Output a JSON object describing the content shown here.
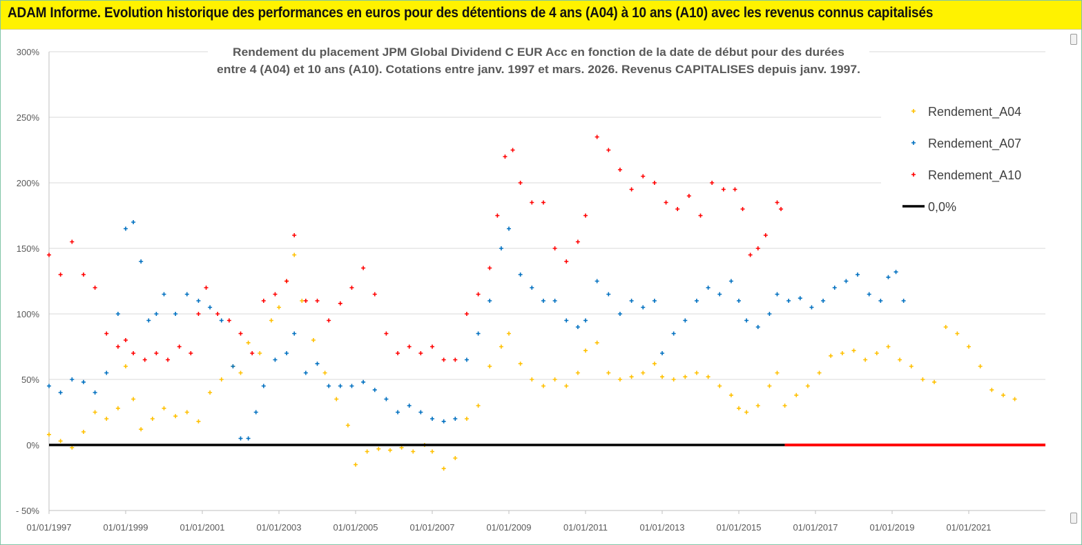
{
  "header": {
    "banner_text": "ADAM Informe. Evolution historique des performances en euros pour des détentions de 4 ans (A04) à 10 ans (A10) avec les revenus connus capitalisés"
  },
  "colors": {
    "banner_bg": "#fff200",
    "a04": "#ffc000",
    "a07": "#0070c0",
    "a10": "#ff0000",
    "zero_line": "#000000"
  },
  "chart_data": {
    "type": "scatter",
    "title_lines": [
      "Rendement du placement JPM Global Dividend C EUR Acc en fonction de la date de début pour des durées",
      "entre 4 (A04) et 10 ans (A10). Cotations entre janv. 1997 et mars. 2026. Revenus CAPITALISES depuis janv. 1997."
    ],
    "x_range": [
      1997.0,
      2023.0
    ],
    "y_range": [
      -50,
      300
    ],
    "y_ticks": [
      -50,
      0,
      50,
      100,
      150,
      200,
      250,
      300
    ],
    "y_tick_labels": [
      "- 50%",
      "0%",
      "50%",
      "100%",
      "150%",
      "200%",
      "250%",
      "300%"
    ],
    "x_ticks": [
      1997,
      1999,
      2001,
      2003,
      2005,
      2007,
      2009,
      2011,
      2013,
      2015,
      2017,
      2019,
      2021
    ],
    "x_tick_labels": [
      "01/01/1997",
      "01/01/1999",
      "01/01/2001",
      "01/01/2003",
      "01/01/2005",
      "01/01/2007",
      "01/01/2009",
      "01/01/2011",
      "01/01/2013",
      "01/01/2015",
      "01/01/2017",
      "01/01/2019",
      "01/01/2021"
    ],
    "gridlines_y": true,
    "legend_position": "top-right",
    "series": [
      {
        "name": "Rendement_A04",
        "marker": "+",
        "color": "#ffc000",
        "points": [
          [
            1997.0,
            8
          ],
          [
            1997.3,
            3
          ],
          [
            1997.6,
            -2
          ],
          [
            1997.9,
            10
          ],
          [
            1998.2,
            25
          ],
          [
            1998.5,
            20
          ],
          [
            1998.8,
            28
          ],
          [
            1999.0,
            60
          ],
          [
            1999.2,
            35
          ],
          [
            1999.4,
            12
          ],
          [
            1999.7,
            20
          ],
          [
            2000.0,
            28
          ],
          [
            2000.3,
            22
          ],
          [
            2000.6,
            25
          ],
          [
            2000.9,
            18
          ],
          [
            2001.2,
            40
          ],
          [
            2001.5,
            50
          ],
          [
            2001.8,
            60
          ],
          [
            2002.0,
            55
          ],
          [
            2002.2,
            78
          ],
          [
            2002.5,
            70
          ],
          [
            2002.8,
            95
          ],
          [
            2003.0,
            105
          ],
          [
            2003.2,
            125
          ],
          [
            2003.4,
            145
          ],
          [
            2003.6,
            110
          ],
          [
            2003.9,
            80
          ],
          [
            2004.2,
            55
          ],
          [
            2004.5,
            35
          ],
          [
            2004.8,
            15
          ],
          [
            2005.0,
            -15
          ],
          [
            2005.3,
            -5
          ],
          [
            2005.6,
            -3
          ],
          [
            2005.9,
            -4
          ],
          [
            2006.2,
            -2
          ],
          [
            2006.5,
            -5
          ],
          [
            2006.8,
            0
          ],
          [
            2007.0,
            -5
          ],
          [
            2007.3,
            -18
          ],
          [
            2007.6,
            -10
          ],
          [
            2007.9,
            20
          ],
          [
            2008.2,
            30
          ],
          [
            2008.5,
            60
          ],
          [
            2008.8,
            75
          ],
          [
            2009.0,
            85
          ],
          [
            2009.3,
            62
          ],
          [
            2009.6,
            50
          ],
          [
            2009.9,
            45
          ],
          [
            2010.2,
            50
          ],
          [
            2010.5,
            45
          ],
          [
            2010.8,
            55
          ],
          [
            2011.0,
            72
          ],
          [
            2011.3,
            78
          ],
          [
            2011.6,
            55
          ],
          [
            2011.9,
            50
          ],
          [
            2012.2,
            52
          ],
          [
            2012.5,
            55
          ],
          [
            2012.8,
            62
          ],
          [
            2013.0,
            52
          ],
          [
            2013.3,
            50
          ],
          [
            2013.6,
            52
          ],
          [
            2013.9,
            55
          ],
          [
            2014.2,
            52
          ],
          [
            2014.5,
            45
          ],
          [
            2014.8,
            38
          ],
          [
            2015.0,
            28
          ],
          [
            2015.2,
            25
          ],
          [
            2015.5,
            30
          ],
          [
            2015.8,
            45
          ],
          [
            2016.0,
            55
          ],
          [
            2016.2,
            30
          ],
          [
            2016.5,
            38
          ],
          [
            2016.8,
            45
          ],
          [
            2017.1,
            55
          ],
          [
            2017.4,
            68
          ],
          [
            2017.7,
            70
          ],
          [
            2018.0,
            72
          ],
          [
            2018.3,
            65
          ],
          [
            2018.6,
            70
          ],
          [
            2018.9,
            75
          ],
          [
            2019.2,
            65
          ],
          [
            2019.5,
            60
          ],
          [
            2019.8,
            50
          ],
          [
            2020.1,
            48
          ],
          [
            2020.4,
            90
          ],
          [
            2020.7,
            85
          ],
          [
            2021.0,
            75
          ],
          [
            2021.3,
            60
          ],
          [
            2021.6,
            42
          ],
          [
            2021.9,
            38
          ],
          [
            2022.2,
            35
          ]
        ]
      },
      {
        "name": "Rendement_A07",
        "marker": "+",
        "color": "#0070c0",
        "points": [
          [
            1997.0,
            45
          ],
          [
            1997.3,
            40
          ],
          [
            1997.6,
            50
          ],
          [
            1997.9,
            48
          ],
          [
            1998.2,
            40
          ],
          [
            1998.5,
            55
          ],
          [
            1998.8,
            100
          ],
          [
            1999.0,
            165
          ],
          [
            1999.2,
            170
          ],
          [
            1999.4,
            140
          ],
          [
            1999.6,
            95
          ],
          [
            1999.8,
            100
          ],
          [
            2000.0,
            115
          ],
          [
            2000.3,
            100
          ],
          [
            2000.6,
            115
          ],
          [
            2000.9,
            110
          ],
          [
            2001.2,
            105
          ],
          [
            2001.5,
            95
          ],
          [
            2001.8,
            60
          ],
          [
            2002.0,
            5
          ],
          [
            2002.2,
            5
          ],
          [
            2002.4,
            25
          ],
          [
            2002.6,
            45
          ],
          [
            2002.9,
            65
          ],
          [
            2003.2,
            70
          ],
          [
            2003.4,
            85
          ],
          [
            2003.7,
            55
          ],
          [
            2004.0,
            62
          ],
          [
            2004.3,
            45
          ],
          [
            2004.6,
            45
          ],
          [
            2004.9,
            45
          ],
          [
            2005.2,
            48
          ],
          [
            2005.5,
            42
          ],
          [
            2005.8,
            35
          ],
          [
            2006.1,
            25
          ],
          [
            2006.4,
            30
          ],
          [
            2006.7,
            25
          ],
          [
            2007.0,
            20
          ],
          [
            2007.3,
            18
          ],
          [
            2007.6,
            20
          ],
          [
            2007.9,
            65
          ],
          [
            2008.2,
            85
          ],
          [
            2008.5,
            110
          ],
          [
            2008.8,
            150
          ],
          [
            2009.0,
            165
          ],
          [
            2009.3,
            130
          ],
          [
            2009.6,
            120
          ],
          [
            2009.9,
            110
          ],
          [
            2010.2,
            110
          ],
          [
            2010.5,
            95
          ],
          [
            2010.8,
            90
          ],
          [
            2011.0,
            95
          ],
          [
            2011.3,
            125
          ],
          [
            2011.6,
            115
          ],
          [
            2011.9,
            100
          ],
          [
            2012.2,
            110
          ],
          [
            2012.5,
            105
          ],
          [
            2012.8,
            110
          ],
          [
            2013.0,
            70
          ],
          [
            2013.3,
            85
          ],
          [
            2013.6,
            95
          ],
          [
            2013.9,
            110
          ],
          [
            2014.2,
            120
          ],
          [
            2014.5,
            115
          ],
          [
            2014.8,
            125
          ],
          [
            2015.0,
            110
          ],
          [
            2015.2,
            95
          ],
          [
            2015.5,
            90
          ],
          [
            2015.8,
            100
          ],
          [
            2016.0,
            115
          ],
          [
            2016.3,
            110
          ],
          [
            2016.6,
            112
          ],
          [
            2016.9,
            105
          ],
          [
            2017.2,
            110
          ],
          [
            2017.5,
            120
          ],
          [
            2017.8,
            125
          ],
          [
            2018.1,
            130
          ],
          [
            2018.4,
            115
          ],
          [
            2018.7,
            110
          ],
          [
            2018.9,
            128
          ],
          [
            2019.1,
            132
          ],
          [
            2019.3,
            110
          ]
        ]
      },
      {
        "name": "Rendement_A10",
        "marker": "+",
        "color": "#ff0000",
        "points": [
          [
            1997.0,
            145
          ],
          [
            1997.3,
            130
          ],
          [
            1997.6,
            155
          ],
          [
            1997.9,
            130
          ],
          [
            1998.2,
            120
          ],
          [
            1998.5,
            85
          ],
          [
            1998.8,
            75
          ],
          [
            1999.0,
            80
          ],
          [
            1999.2,
            70
          ],
          [
            1999.5,
            65
          ],
          [
            1999.8,
            70
          ],
          [
            2000.1,
            65
          ],
          [
            2000.4,
            75
          ],
          [
            2000.7,
            70
          ],
          [
            2000.9,
            100
          ],
          [
            2001.1,
            120
          ],
          [
            2001.4,
            100
          ],
          [
            2001.7,
            95
          ],
          [
            2002.0,
            85
          ],
          [
            2002.3,
            70
          ],
          [
            2002.6,
            110
          ],
          [
            2002.9,
            115
          ],
          [
            2003.2,
            125
          ],
          [
            2003.4,
            160
          ],
          [
            2003.7,
            110
          ],
          [
            2004.0,
            110
          ],
          [
            2004.3,
            95
          ],
          [
            2004.6,
            108
          ],
          [
            2004.9,
            120
          ],
          [
            2005.2,
            135
          ],
          [
            2005.5,
            115
          ],
          [
            2005.8,
            85
          ],
          [
            2006.1,
            70
          ],
          [
            2006.4,
            75
          ],
          [
            2006.7,
            70
          ],
          [
            2007.0,
            75
          ],
          [
            2007.3,
            65
          ],
          [
            2007.6,
            65
          ],
          [
            2007.9,
            100
          ],
          [
            2008.2,
            115
          ],
          [
            2008.5,
            135
          ],
          [
            2008.7,
            175
          ],
          [
            2008.9,
            220
          ],
          [
            2009.1,
            225
          ],
          [
            2009.3,
            200
          ],
          [
            2009.6,
            185
          ],
          [
            2009.9,
            185
          ],
          [
            2010.2,
            150
          ],
          [
            2010.5,
            140
          ],
          [
            2010.8,
            155
          ],
          [
            2011.0,
            175
          ],
          [
            2011.3,
            235
          ],
          [
            2011.6,
            225
          ],
          [
            2011.9,
            210
          ],
          [
            2012.2,
            195
          ],
          [
            2012.5,
            205
          ],
          [
            2012.8,
            200
          ],
          [
            2013.1,
            185
          ],
          [
            2013.4,
            180
          ],
          [
            2013.7,
            190
          ],
          [
            2014.0,
            175
          ],
          [
            2014.3,
            200
          ],
          [
            2014.6,
            195
          ],
          [
            2014.9,
            195
          ],
          [
            2015.1,
            180
          ],
          [
            2015.3,
            145
          ],
          [
            2015.5,
            150
          ],
          [
            2015.7,
            160
          ],
          [
            2016.0,
            185
          ],
          [
            2016.1,
            180
          ]
        ]
      },
      {
        "name": "0,0%",
        "marker": "line",
        "color": "#000000",
        "y": 0,
        "x_span": [
          1997.0,
          2016.2
        ]
      }
    ],
    "a10_zero_extension": {
      "color": "#ff0000",
      "y": 0,
      "x_span": [
        2016.2,
        2023.0
      ]
    }
  }
}
